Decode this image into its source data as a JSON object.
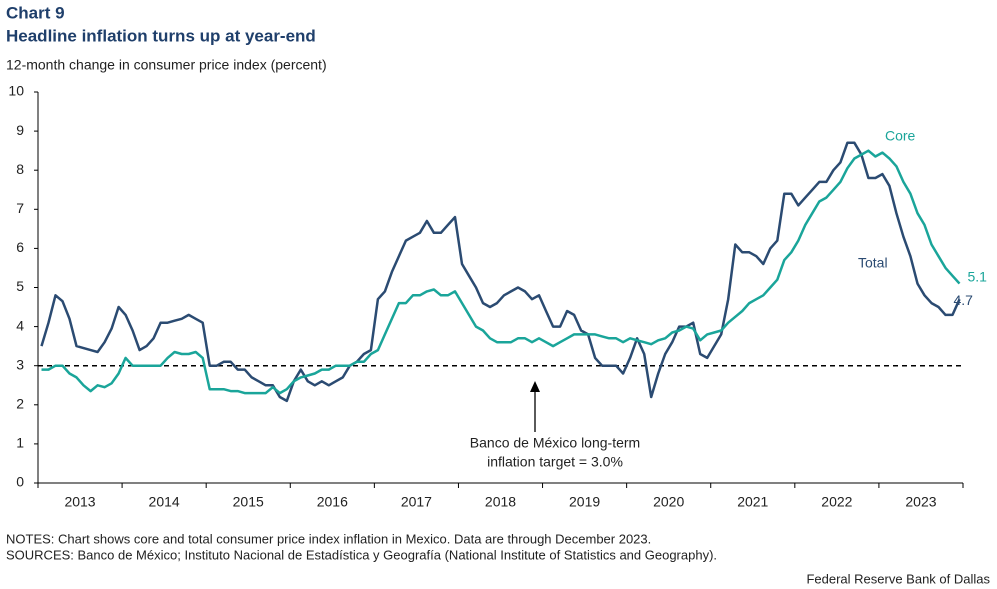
{
  "chart_data": {
    "type": "line",
    "chart_number": "Chart 9",
    "title": "Headline inflation turns up at year-end",
    "subtitle": "12-month change in consumer price index (percent)",
    "categories": [
      null,
      null,
      null,
      null,
      null,
      null,
      "2013",
      null,
      null,
      null,
      null,
      null,
      null,
      null,
      null,
      null,
      null,
      null,
      "2014",
      null,
      null,
      null,
      null,
      null,
      null,
      null,
      null,
      null,
      null,
      null,
      "2015",
      null,
      null,
      null,
      null,
      null,
      null,
      null,
      null,
      null,
      null,
      null,
      "2016",
      null,
      null,
      null,
      null,
      null,
      null,
      null,
      null,
      null,
      null,
      null,
      "2017",
      null,
      null,
      null,
      null,
      null,
      null,
      null,
      null,
      null,
      null,
      null,
      "2018",
      null,
      null,
      null,
      null,
      null,
      null,
      null,
      null,
      null,
      null,
      null,
      "2019",
      null,
      null,
      null,
      null,
      null,
      null,
      null,
      null,
      null,
      null,
      null,
      "2020",
      null,
      null,
      null,
      null,
      null,
      null,
      null,
      null,
      null,
      null,
      null,
      "2021",
      null,
      null,
      null,
      null,
      null,
      null,
      null,
      null,
      null,
      null,
      null,
      "2022",
      null,
      null,
      null,
      null,
      null,
      null,
      null,
      null,
      null,
      null,
      null,
      "2023",
      null,
      null,
      null,
      null,
      null
    ],
    "series": [
      {
        "name": "Total",
        "color": "#2b4b72",
        "values": [
          3.5,
          4.1,
          4.8,
          4.65,
          4.2,
          3.5,
          3.45,
          3.4,
          3.35,
          3.6,
          3.95,
          4.5,
          4.3,
          3.9,
          3.4,
          3.5,
          3.7,
          4.1,
          4.1,
          4.15,
          4.2,
          4.3,
          4.2,
          4.1,
          3.0,
          3.0,
          3.1,
          3.1,
          2.9,
          2.9,
          2.7,
          2.6,
          2.5,
          2.5,
          2.2,
          2.1,
          2.6,
          2.9,
          2.6,
          2.5,
          2.6,
          2.5,
          2.6,
          2.7,
          3.0,
          3.1,
          3.3,
          3.4,
          4.7,
          4.9,
          5.4,
          5.8,
          6.2,
          6.3,
          6.4,
          6.7,
          6.4,
          6.4,
          6.6,
          6.8,
          5.6,
          5.3,
          5.0,
          4.6,
          4.5,
          4.6,
          4.8,
          4.9,
          5.0,
          4.9,
          4.7,
          4.8,
          4.4,
          4.0,
          4.0,
          4.4,
          4.3,
          3.9,
          3.8,
          3.2,
          3.0,
          3.0,
          3.0,
          2.8,
          3.2,
          3.7,
          3.3,
          2.2,
          2.8,
          3.3,
          3.6,
          4.0,
          4.0,
          4.1,
          3.3,
          3.2,
          3.5,
          3.8,
          4.7,
          6.1,
          5.9,
          5.9,
          5.8,
          5.6,
          6.0,
          6.2,
          7.4,
          7.4,
          7.1,
          7.3,
          7.5,
          7.7,
          7.7,
          8.0,
          8.2,
          8.7,
          8.7,
          8.4,
          7.8,
          7.8,
          7.9,
          7.6,
          6.9,
          6.3,
          5.8,
          5.1,
          4.8,
          4.6,
          4.5,
          4.3,
          4.3,
          4.7
        ]
      },
      {
        "name": "Core",
        "color": "#1aa59a",
        "values": [
          2.9,
          2.9,
          3.0,
          3.0,
          2.8,
          2.7,
          2.5,
          2.35,
          2.5,
          2.45,
          2.55,
          2.8,
          3.2,
          3.0,
          3.0,
          3.0,
          3.0,
          3.0,
          3.2,
          3.35,
          3.3,
          3.3,
          3.35,
          3.2,
          2.4,
          2.4,
          2.4,
          2.35,
          2.35,
          2.3,
          2.3,
          2.3,
          2.3,
          2.45,
          2.3,
          2.4,
          2.6,
          2.7,
          2.75,
          2.8,
          2.9,
          2.9,
          3.0,
          3.0,
          3.0,
          3.1,
          3.1,
          3.3,
          3.4,
          3.8,
          4.2,
          4.6,
          4.6,
          4.8,
          4.8,
          4.9,
          4.95,
          4.8,
          4.8,
          4.9,
          4.6,
          4.3,
          4.0,
          3.9,
          3.7,
          3.6,
          3.6,
          3.6,
          3.7,
          3.7,
          3.6,
          3.7,
          3.6,
          3.5,
          3.6,
          3.7,
          3.8,
          3.8,
          3.8,
          3.8,
          3.75,
          3.7,
          3.7,
          3.6,
          3.7,
          3.65,
          3.6,
          3.55,
          3.65,
          3.7,
          3.85,
          3.9,
          4.0,
          3.95,
          3.65,
          3.8,
          3.85,
          3.9,
          4.1,
          4.25,
          4.4,
          4.6,
          4.7,
          4.8,
          5.0,
          5.2,
          5.7,
          5.9,
          6.2,
          6.6,
          6.9,
          7.2,
          7.3,
          7.5,
          7.7,
          8.05,
          8.3,
          8.4,
          8.5,
          8.35,
          8.45,
          8.3,
          8.1,
          7.7,
          7.4,
          6.9,
          6.6,
          6.1,
          5.8,
          5.5,
          5.3,
          5.1
        ]
      }
    ],
    "target": 3,
    "target_label": [
      "Banco de México long-term",
      "inflation target = 3.0%"
    ],
    "ylim": [
      0,
      10
    ],
    "yticks": [
      0,
      1,
      2,
      3,
      4,
      5,
      6,
      7,
      8,
      9,
      10
    ],
    "notes": "NOTES: Chart shows core and total consumer price index inflation in Mexico. Data are through December 2023.",
    "sources": "SOURCES: Banco de México; Instituto Nacional de Estadística y Geografía (National Institute of Statistics and Geography).",
    "credit": "Federal Reserve Bank of Dallas"
  }
}
